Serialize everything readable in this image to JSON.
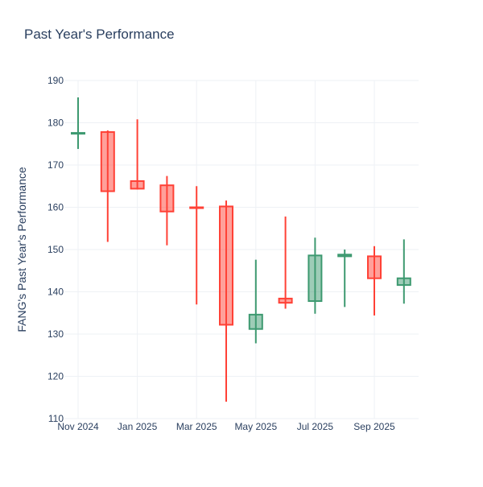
{
  "chart_data": {
    "type": "candlestick",
    "title": "Past Year's Performance",
    "xlabel": "",
    "ylabel": "FANG's Past Year's Performance",
    "ylim": [
      110,
      190
    ],
    "y_ticks": [
      110,
      120,
      130,
      140,
      150,
      160,
      170,
      180,
      190
    ],
    "x_tick_labels": [
      "Nov 2024",
      "Jan 2025",
      "Mar 2025",
      "May 2025",
      "Jul 2025",
      "Sep 2025"
    ],
    "grid": true,
    "legend": "none",
    "colors": {
      "increasing": "#3d9970",
      "increasing_fill": "rgba(61,153,112,0.5)",
      "decreasing": "#ff4136",
      "decreasing_fill": "rgba(255,65,54,0.5)",
      "grid": "#eef1f5",
      "text": "#2a3f5f"
    },
    "candles": [
      {
        "month": "Nov 2024",
        "open": 177.4,
        "high": 186.0,
        "low": 173.8,
        "close": 177.6
      },
      {
        "month": "Dec 2024",
        "open": 177.8,
        "high": 178.2,
        "low": 151.8,
        "close": 163.8
      },
      {
        "month": "Jan 2025",
        "open": 166.2,
        "high": 180.8,
        "low": 164.2,
        "close": 164.4
      },
      {
        "month": "Feb 2025",
        "open": 165.2,
        "high": 167.4,
        "low": 151.0,
        "close": 159.0
      },
      {
        "month": "Mar 2025",
        "open": 160.0,
        "high": 165.0,
        "low": 137.0,
        "close": 159.8
      },
      {
        "month": "Apr 2025",
        "open": 160.2,
        "high": 161.6,
        "low": 114.0,
        "close": 132.2
      },
      {
        "month": "May 2025",
        "open": 131.2,
        "high": 147.6,
        "low": 127.8,
        "close": 134.6
      },
      {
        "month": "Jun 2025",
        "open": 138.4,
        "high": 157.8,
        "low": 136.0,
        "close": 137.4
      },
      {
        "month": "Jul 2025",
        "open": 137.8,
        "high": 152.8,
        "low": 134.8,
        "close": 148.6
      },
      {
        "month": "Aug 2025",
        "open": 148.4,
        "high": 150.0,
        "low": 136.4,
        "close": 148.8
      },
      {
        "month": "Sep 2025",
        "open": 148.4,
        "high": 150.8,
        "low": 134.4,
        "close": 143.2
      },
      {
        "month": "Oct 2025",
        "open": 141.6,
        "high": 152.4,
        "low": 137.2,
        "close": 143.2
      }
    ]
  }
}
